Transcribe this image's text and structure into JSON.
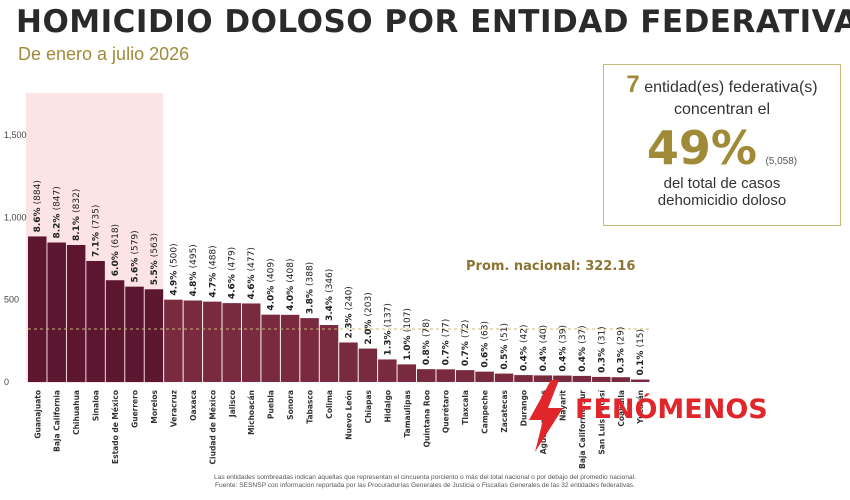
{
  "header": {
    "title": "HOMICIDIO DOLOSO POR ENTIDAD FEDERATIVA",
    "subtitle": "De enero a julio 2026"
  },
  "callout": {
    "count": "7",
    "line1": "entidad(es) federativa(s)",
    "line2": "concentran el",
    "percent": "49%",
    "cases": "(5,058)",
    "line3": "del total de casos",
    "line4": "dehomicidio doloso"
  },
  "footnote": {
    "line1": "Las entidades sombreadas indican aquellas que representan el cincuenta porciento o más del total nacional o por debajo del promedio nacional.",
    "line2": "Fuente: SESNSP con información reportada por las Procuradurías Generales de Justicia o Fiscalías Generales de las 32 entidades federativas."
  },
  "watermark": {
    "text": "FENÓMENOS",
    "color": "#e0262b"
  },
  "colors": {
    "highlight_bar": "#5c1630",
    "regular_bar": "#7a2a3f",
    "highlight_band": "#fbe3e6",
    "average_line": "#c9b878",
    "average_label": "#8a7632"
  },
  "chart_data": {
    "type": "bar",
    "ylim": [
      0,
      1800
    ],
    "yticks": [
      0,
      500,
      1000,
      1500
    ],
    "y_tick_labels": [
      "0",
      "500",
      "1,000",
      "1,500"
    ],
    "highlighted_count": 7,
    "average": 322.16,
    "average_label": "Prom. nacional: 322.16",
    "categories": [
      "Guanajuato",
      "Baja California",
      "Chihuahua",
      "Sinaloa",
      "Estado de México",
      "Guerrero",
      "Morelos",
      "Veracruz",
      "Oaxaca",
      "Ciudad de México",
      "Jalisco",
      "Michoacán",
      "Puebla",
      "Sonora",
      "Tabasco",
      "Colima",
      "Nuevo León",
      "Chiapas",
      "Hidalgo",
      "Tamaulipas",
      "Quintana Roo",
      "Querétaro",
      "Tlaxcala",
      "Campeche",
      "Zacatecas",
      "Durango",
      "Aguascalientes",
      "Nayarit",
      "Baja California Sur",
      "San Luis Potosí",
      "Coahuila",
      "Yucatán"
    ],
    "values": [
      884,
      847,
      832,
      735,
      618,
      579,
      563,
      500,
      495,
      488,
      479,
      477,
      409,
      408,
      388,
      346,
      240,
      203,
      137,
      107,
      78,
      77,
      72,
      63,
      51,
      42,
      40,
      39,
      37,
      31,
      29,
      15
    ],
    "data_labels": [
      "8.6% (884)",
      "8.2% (847)",
      "8.1% (832)",
      "7.1% (735)",
      "6.0% (618)",
      "5.6% (579)",
      "5.5% (563)",
      "4.9% (500)",
      "4.8% (495)",
      "4.7% (488)",
      "4.6% (479)",
      "4.6% (477)",
      "4.0% (409)",
      "4.0% (408)",
      "3.8% (388)",
      "3.4% (346)",
      "2.3% (240)",
      "2.0% (203)",
      "1.3% (137)",
      "1.0% (107)",
      "0.8% (78)",
      "0.7% (77)",
      "0.7% (72)",
      "0.6% (63)",
      "0.5% (51)",
      "0.4% (42)",
      "0.4% (40)",
      "0.4% (39)",
      "0.4% (37)",
      "0.3% (31)",
      "0.3% (29)",
      "0.1% (15)"
    ]
  }
}
